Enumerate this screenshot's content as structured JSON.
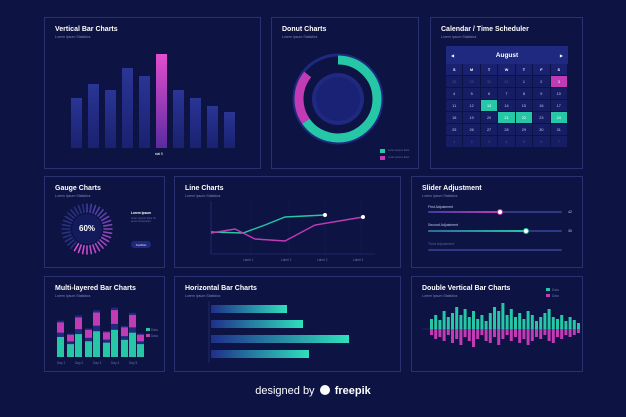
{
  "credit": {
    "prefix": "designed by",
    "brand": "freepik"
  },
  "colors": {
    "teal": "#25c7a7",
    "pink": "#c13bb5",
    "navy": "#0d1342",
    "bar": "#1f2980"
  },
  "vertical_bar": {
    "title": "Vertical Bar Charts",
    "subtitle": "Lorem Ipsum Statistics",
    "highlight_label": "stat 5"
  },
  "donut": {
    "title": "Donut Charts",
    "subtitle": "Lorem Ipsum Statistics",
    "legend": [
      {
        "color": "#25c7a7",
        "label": "Lorem ipsum dolor"
      },
      {
        "color": "#c13bb5",
        "label": "Lorem ipsum dolor"
      }
    ]
  },
  "calendar": {
    "title": "Calendar / Time Scheduler",
    "subtitle": "Lorem Ipsum Statistics",
    "month": "August",
    "prev": "◀",
    "next": "▶",
    "weekdays": [
      "S",
      "M",
      "T",
      "W",
      "T",
      "F",
      "S"
    ],
    "weeks": [
      [
        {
          "d": "28",
          "s": "dim"
        },
        {
          "d": "29",
          "s": "dim"
        },
        {
          "d": "30",
          "s": "dim"
        },
        {
          "d": "31",
          "s": "dim"
        },
        {
          "d": "1",
          "s": ""
        },
        {
          "d": "2",
          "s": ""
        },
        {
          "d": "3",
          "s": "pink"
        }
      ],
      [
        {
          "d": "4",
          "s": ""
        },
        {
          "d": "5",
          "s": ""
        },
        {
          "d": "6",
          "s": ""
        },
        {
          "d": "7",
          "s": ""
        },
        {
          "d": "8",
          "s": ""
        },
        {
          "d": "9",
          "s": ""
        },
        {
          "d": "10",
          "s": ""
        }
      ],
      [
        {
          "d": "11",
          "s": ""
        },
        {
          "d": "12",
          "s": ""
        },
        {
          "d": "13",
          "s": "teal"
        },
        {
          "d": "14",
          "s": ""
        },
        {
          "d": "15",
          "s": ""
        },
        {
          "d": "16",
          "s": ""
        },
        {
          "d": "17",
          "s": ""
        }
      ],
      [
        {
          "d": "18",
          "s": ""
        },
        {
          "d": "19",
          "s": ""
        },
        {
          "d": "20",
          "s": ""
        },
        {
          "d": "21",
          "s": "teal"
        },
        {
          "d": "22",
          "s": "teal"
        },
        {
          "d": "23",
          "s": ""
        },
        {
          "d": "24",
          "s": "teal"
        }
      ],
      [
        {
          "d": "25",
          "s": ""
        },
        {
          "d": "26",
          "s": ""
        },
        {
          "d": "27",
          "s": ""
        },
        {
          "d": "28",
          "s": ""
        },
        {
          "d": "29",
          "s": ""
        },
        {
          "d": "30",
          "s": ""
        },
        {
          "d": "31",
          "s": ""
        }
      ],
      [
        {
          "d": "1",
          "s": "dim"
        },
        {
          "d": "2",
          "s": "dim"
        },
        {
          "d": "3",
          "s": "dim"
        },
        {
          "d": "4",
          "s": "dim"
        },
        {
          "d": "5",
          "s": "dim"
        },
        {
          "d": "6",
          "s": "dim"
        },
        {
          "d": "7",
          "s": "dim"
        }
      ]
    ]
  },
  "gauge": {
    "title": "Gauge Charts",
    "subtitle": "Lorem Ipsum Statistics",
    "value_label": "60%",
    "side_title": "Lorem Ipsum",
    "side_text": "Lorem ipsum dolor sit amet consectetur",
    "button": "Confirm"
  },
  "line": {
    "title": "Line Charts",
    "subtitle": "Lorem Ipsum Statistics",
    "x_labels": [
      "Label 1",
      "Label 2",
      "Label 3",
      "Label 4"
    ]
  },
  "slider": {
    "title": "Slider Adjustment",
    "subtitle": "Lorem Ipsum Statistics",
    "items": [
      {
        "label": "First Adjustment",
        "value": "42"
      },
      {
        "label": "Second Adjustment",
        "value": "30"
      },
      {
        "label": "Third Adjustment",
        "value": ""
      }
    ]
  },
  "multi_bar": {
    "title": "Multi-layered Bar Charts",
    "subtitle": "Lorem Ipsum Statistics",
    "categories": [
      "Day 1",
      "Day 2",
      "Day 3",
      "Day 4",
      "Day 5"
    ],
    "legend": [
      "Data",
      "Data"
    ]
  },
  "hbar": {
    "title": "Horizontal Bar Charts",
    "subtitle": "Lorem Ipsum Statistics"
  },
  "double_bar": {
    "title": "Double Vertical Bar Charts",
    "subtitle": "Lorem Ipsum Statistics",
    "legend": [
      "Data",
      "Data"
    ]
  }
}
